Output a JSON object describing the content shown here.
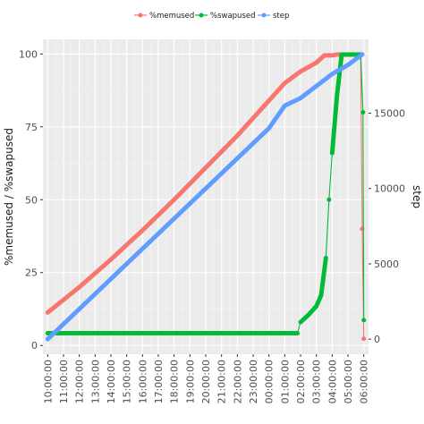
{
  "chart_data": {
    "type": "line",
    "title": "",
    "legend": {
      "placement": "top",
      "entries": [
        {
          "name": "%memused",
          "color": "#F8766D"
        },
        {
          "name": "%swapused",
          "color": "#00BA38"
        },
        {
          "name": "step",
          "color": "#619CFF"
        }
      ]
    },
    "ylabel": "%memused / %swapused",
    "y2label": "step",
    "ylim": [
      -3,
      105
    ],
    "y2lim": [
      -1000,
      19900
    ],
    "y_ticks": [
      "0",
      "25",
      "50",
      "75",
      "100"
    ],
    "y_tick_values": [
      0,
      25,
      50,
      75,
      100
    ],
    "y2_ticks": [
      "0",
      "5000",
      "10000",
      "15000"
    ],
    "y2_tick_values": [
      0,
      5000,
      10000,
      15000
    ],
    "x_ticks": [
      "10:00:00",
      "11:00:00",
      "12:00:00",
      "13:00:00",
      "14:00:00",
      "15:00:00",
      "16:00:00",
      "17:00:00",
      "18:00:00",
      "19:00:00",
      "20:00:00",
      "21:00:00",
      "22:00:00",
      "23:00:00",
      "00:00:00",
      "01:00:00",
      "02:00:00",
      "03:00:00",
      "04:00:00",
      "05:00:00",
      "06:00:00"
    ],
    "x_unit": "hours after 10:00:00",
    "xlim": [
      -0.3,
      20.3
    ],
    "grid": true,
    "series": [
      {
        "name": "%memused",
        "axis": "left",
        "color": "#F8766D",
        "points": [
          [
            0,
            11.3
          ],
          [
            2,
            20
          ],
          [
            4,
            29.5
          ],
          [
            6,
            39.5
          ],
          [
            8,
            50
          ],
          [
            10,
            61
          ],
          [
            12,
            72
          ],
          [
            14,
            84
          ],
          [
            15,
            90
          ],
          [
            16,
            94
          ],
          [
            17,
            97
          ],
          [
            17.5,
            99.5
          ],
          [
            18,
            99.5
          ],
          [
            18.3,
            99.8
          ],
          [
            19.8,
            99.8
          ],
          [
            19.9,
            40
          ],
          [
            20,
            2.3
          ]
        ]
      },
      {
        "name": "%swapused",
        "axis": "left",
        "color": "#00BA38",
        "points": [
          [
            0,
            4.2
          ],
          [
            15.8,
            4.2
          ],
          [
            16,
            8
          ],
          [
            16.5,
            10.5
          ],
          [
            17,
            13.5
          ],
          [
            17.3,
            17.2
          ],
          [
            17.6,
            30
          ],
          [
            17.8,
            50
          ],
          [
            18,
            66
          ],
          [
            18.3,
            85.5
          ],
          [
            18.6,
            99.8
          ],
          [
            19.8,
            99.8
          ],
          [
            19.95,
            80
          ],
          [
            20,
            8.7
          ]
        ]
      },
      {
        "name": "step",
        "axis": "right",
        "color": "#619CFF",
        "points": [
          [
            0,
            0
          ],
          [
            2,
            2000
          ],
          [
            4,
            4000
          ],
          [
            6,
            6000
          ],
          [
            8,
            8000
          ],
          [
            10,
            10000
          ],
          [
            12,
            12000
          ],
          [
            14,
            14000
          ],
          [
            15,
            15500
          ],
          [
            16,
            16000
          ],
          [
            17,
            16800
          ],
          [
            18,
            17600
          ],
          [
            19,
            18200
          ],
          [
            19.9,
            18900
          ]
        ]
      }
    ]
  }
}
